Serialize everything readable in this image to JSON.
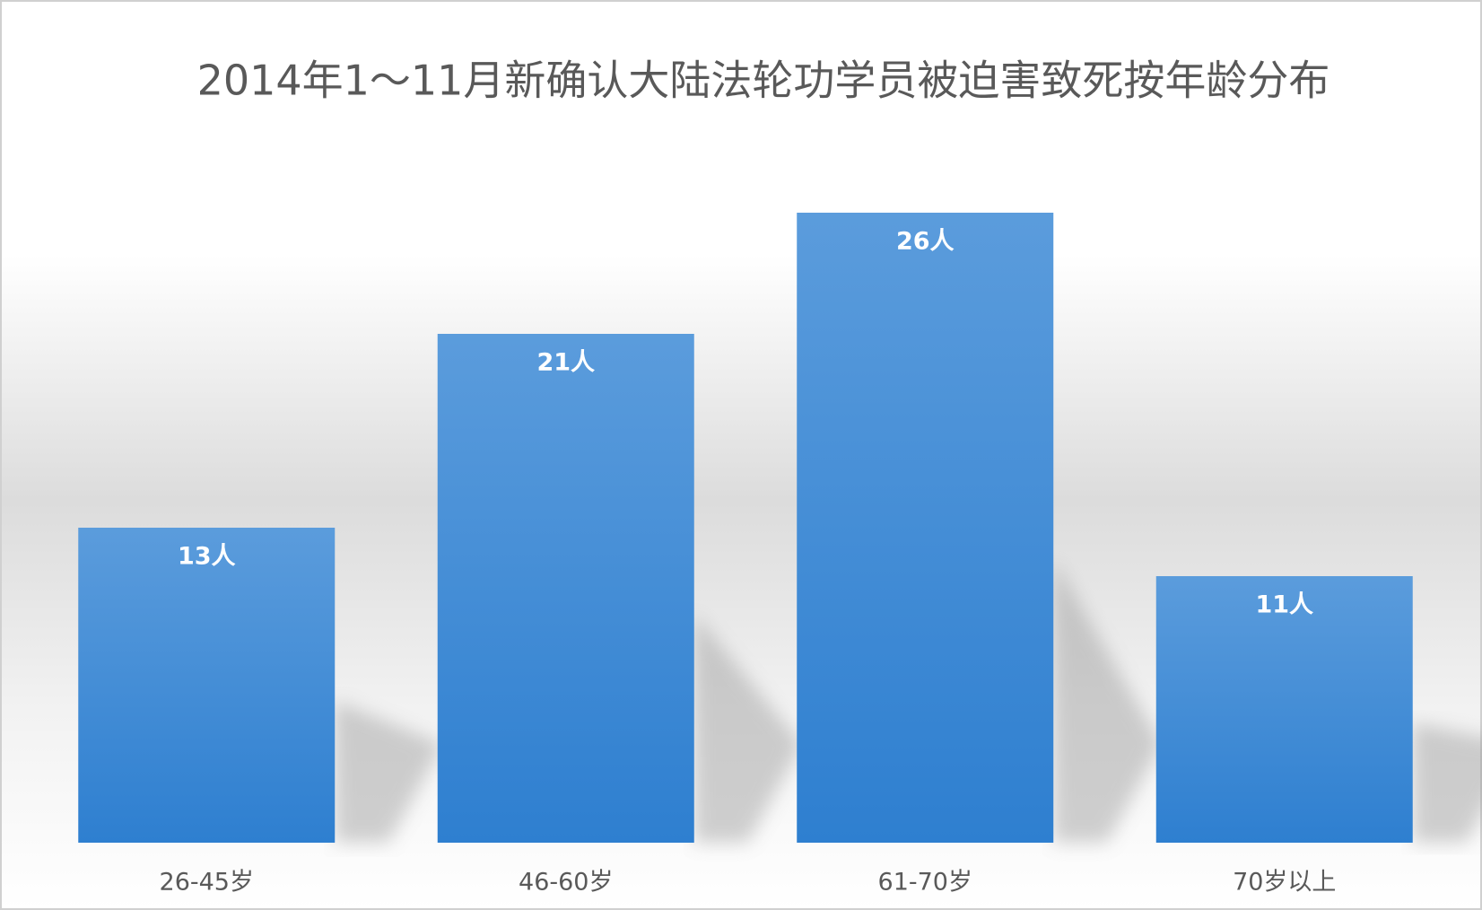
{
  "chart_data": {
    "type": "bar",
    "title": "2014年1～11月新确认大陆法轮功学员被迫害致死按年龄分布",
    "categories": [
      "26-45岁",
      "46-60岁",
      "61-70岁",
      "70岁以上"
    ],
    "values": [
      13,
      21,
      26,
      11
    ],
    "value_labels": [
      "13人",
      "21人",
      "26人",
      "11人"
    ],
    "color": "#3a8ad6"
  }
}
